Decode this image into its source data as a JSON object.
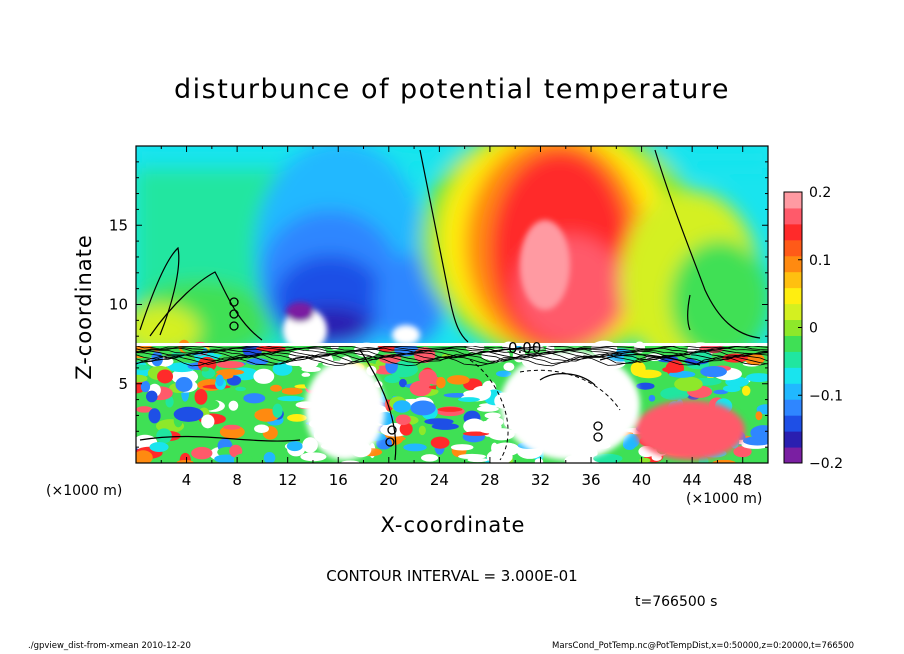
{
  "chart_data": {
    "type": "heatmap",
    "title": "disturbunce of potential temperature",
    "xlabel": "X-coordinate",
    "ylabel": "Z-coordinate",
    "x_unit_label": "(×1000 m)",
    "xlim": [
      0,
      50
    ],
    "ylim": [
      0,
      20
    ],
    "x_ticks": [
      4,
      8,
      12,
      16,
      20,
      24,
      28,
      32,
      36,
      40,
      44,
      48
    ],
    "y_ticks": [
      5,
      10,
      15
    ],
    "colorbar": {
      "range": [
        -0.2,
        0.2
      ],
      "ticks": [
        0.2,
        0.1,
        0,
        -0.1,
        -0.2
      ],
      "tick_labels": [
        "0.2",
        "0.1",
        "0",
        "−0.1",
        "−0.2"
      ],
      "colors": [
        "#7a1fa2",
        "#2a1fb0",
        "#1e4fe6",
        "#2f86ff",
        "#21b8ff",
        "#19e4ee",
        "#20e6a0",
        "#3fe055",
        "#8ee82a",
        "#d4f020",
        "#ffee10",
        "#ffc010",
        "#ff8a10",
        "#ff5a18",
        "#ff2a2a",
        "#ff5a6a",
        "#ff9aa2"
      ]
    },
    "contour_interval": "CONTOUR INTERVAL = 3.000E-01",
    "contour_label": "0.00",
    "time": "t=766500 s",
    "footer_left": "./gpview_dist-from-xmean  2010-12-20",
    "footer_right": "MarsCond_PotTemp.nc@PotTempDist,x=0:50000,z=0:20000,t=766500"
  }
}
